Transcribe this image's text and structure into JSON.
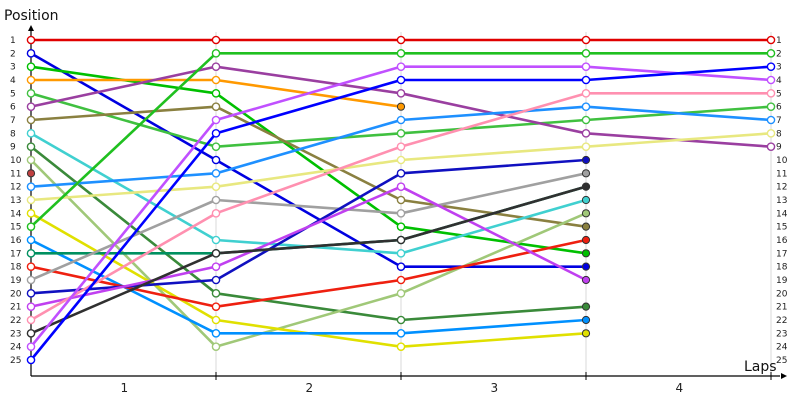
{
  "chart_data": {
    "type": "line",
    "ylabel": "Position",
    "xlabel": "Laps",
    "x_lap_labels": [
      "1",
      "2",
      "3",
      "4"
    ],
    "positions": [
      "1",
      "2",
      "3",
      "4",
      "5",
      "6",
      "7",
      "8",
      "9",
      "10",
      "11",
      "12",
      "13",
      "14",
      "15",
      "16",
      "17",
      "18",
      "19",
      "20",
      "21",
      "22",
      "23",
      "24",
      "25"
    ],
    "right_positions": [
      "1",
      "2",
      "3",
      "4",
      "5",
      "6",
      "7",
      "8",
      "9",
      "10",
      "11",
      "12",
      "13",
      "14",
      "15",
      "16",
      "17",
      "18",
      "19",
      "20",
      "21",
      "22",
      "23",
      "24",
      "25"
    ],
    "ylim": [
      1,
      25
    ],
    "xlim": [
      0,
      4
    ],
    "grid": {
      "vertical": true,
      "horizontal": false
    },
    "series": [
      {
        "color": "#e00000",
        "values": [
          1,
          1,
          1,
          1,
          1
        ]
      },
      {
        "color": "#0000e0",
        "values": [
          2,
          10,
          18,
          18,
          null
        ]
      },
      {
        "color": "#00c000",
        "values": [
          3,
          5,
          15,
          17,
          null
        ]
      },
      {
        "color": "#ff9900",
        "values": [
          4,
          4,
          6,
          null,
          null
        ]
      },
      {
        "color": "#40c040",
        "values": [
          5,
          9,
          8,
          7,
          6
        ]
      },
      {
        "color": "#9a3fa0",
        "values": [
          6,
          3,
          5,
          8,
          9
        ]
      },
      {
        "color": "#8a8040",
        "values": [
          7,
          6,
          13,
          15,
          null
        ]
      },
      {
        "color": "#40d0d0",
        "values": [
          8,
          16,
          17,
          13,
          null
        ]
      },
      {
        "color": "#3a8a3a",
        "values": [
          9,
          20,
          22,
          21,
          null
        ]
      },
      {
        "color": "#a0c878",
        "values": [
          10,
          24,
          20,
          14,
          null
        ]
      },
      {
        "color": "#c04040",
        "values": [
          11,
          null,
          null,
          null,
          null
        ]
      },
      {
        "color": "#1e90ff",
        "values": [
          12,
          11,
          7,
          6,
          7
        ]
      },
      {
        "color": "#e8e880",
        "values": [
          13,
          12,
          10,
          9,
          8
        ]
      },
      {
        "color": "#e0e000",
        "values": [
          14,
          22,
          24,
          23,
          null
        ]
      },
      {
        "color": "#20c020",
        "values": [
          15,
          2,
          2,
          2,
          2
        ]
      },
      {
        "color": "#0090ff",
        "values": [
          16,
          23,
          23,
          22,
          null
        ]
      },
      {
        "color": "#009060",
        "values": [
          17,
          17,
          16,
          12,
          null
        ]
      },
      {
        "color": "#ee2010",
        "values": [
          18,
          21,
          19,
          16,
          null
        ]
      },
      {
        "color": "#a0a0a0",
        "values": [
          19,
          13,
          14,
          11,
          null
        ]
      },
      {
        "color": "#1010c0",
        "values": [
          20,
          19,
          11,
          10,
          null
        ]
      },
      {
        "color": "#c040f0",
        "values": [
          21,
          18,
          12,
          19,
          null
        ]
      },
      {
        "color": "#ff90b0",
        "values": [
          22,
          14,
          9,
          5,
          5
        ]
      },
      {
        "color": "#303030",
        "values": [
          23,
          17,
          16,
          12,
          null
        ]
      },
      {
        "color": "#c050ff",
        "values": [
          24,
          7,
          3,
          3,
          4
        ]
      },
      {
        "color": "#0000ff",
        "values": [
          25,
          8,
          4,
          4,
          3
        ]
      }
    ]
  }
}
